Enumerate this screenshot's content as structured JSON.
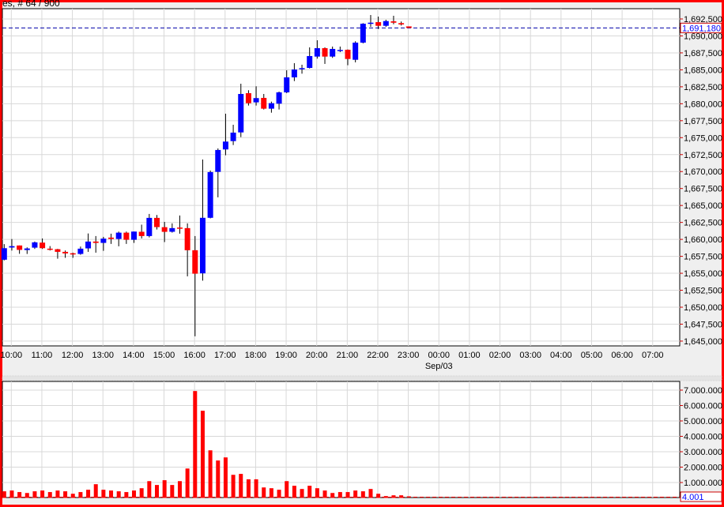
{
  "title": "es, # 64 / 900",
  "colors": {
    "up": "#0000ff",
    "down": "#ff0000",
    "volume": "#ff0000",
    "grid": "#d8d8d8",
    "frame": "#ff0000",
    "last_price_line": "#0000aa"
  },
  "chart_data": [
    {
      "type": "candlestick",
      "times": [
        "09:45",
        "10:00",
        "10:15",
        "10:30",
        "10:45",
        "11:00",
        "11:15",
        "11:30",
        "11:45",
        "12:00",
        "12:15",
        "12:30",
        "12:45",
        "13:00",
        "13:15",
        "13:30",
        "13:45",
        "14:00",
        "14:15",
        "14:30",
        "14:45",
        "15:00",
        "15:15",
        "15:30",
        "15:45",
        "16:00",
        "16:15",
        "16:30",
        "16:45",
        "17:00",
        "17:15",
        "17:30",
        "17:45",
        "18:00",
        "18:15",
        "18:30",
        "18:45",
        "19:00",
        "19:15",
        "19:30",
        "19:45",
        "20:00",
        "20:15",
        "20:30",
        "20:45",
        "21:00",
        "21:15",
        "21:30",
        "21:45",
        "22:00",
        "22:15",
        "22:30",
        "22:45",
        "23:00"
      ],
      "ohlc": [
        [
          1657000,
          1659300,
          1656900,
          1658700
        ],
        [
          1658800,
          1660050,
          1658350,
          1659000
        ],
        [
          1659100,
          1659100,
          1657870,
          1658450
        ],
        [
          1658430,
          1658820,
          1657850,
          1658660
        ],
        [
          1658780,
          1659680,
          1658590,
          1659560
        ],
        [
          1659520,
          1660140,
          1658590,
          1658700
        ],
        [
          1658630,
          1659010,
          1658360,
          1658600
        ],
        [
          1658550,
          1658600,
          1657150,
          1658160
        ],
        [
          1658160,
          1658360,
          1657280,
          1657930
        ],
        [
          1657950,
          1658040,
          1657280,
          1657930
        ],
        [
          1657850,
          1658940,
          1657730,
          1658630
        ],
        [
          1658670,
          1660870,
          1658160,
          1659680
        ],
        [
          1659680,
          1660490,
          1658040,
          1659480
        ],
        [
          1659480,
          1660370,
          1658310,
          1660110
        ],
        [
          1660260,
          1660840,
          1659330,
          1660060
        ],
        [
          1660060,
          1661150,
          1658980,
          1660990
        ],
        [
          1660990,
          1661150,
          1659330,
          1659940
        ],
        [
          1659940,
          1661150,
          1659480,
          1661150
        ],
        [
          1661120,
          1662170,
          1660140,
          1660490
        ],
        [
          1660490,
          1663750,
          1660290,
          1663170
        ],
        [
          1663170,
          1663600,
          1661460,
          1661810
        ],
        [
          1661800,
          1662580,
          1659600,
          1661110
        ],
        [
          1661120,
          1662360,
          1661000,
          1661660
        ],
        [
          1661740,
          1663520,
          1660840,
          1661620
        ],
        [
          1661660,
          1662360,
          1654550,
          1658400
        ],
        [
          1658400,
          1660490,
          1645710,
          1654940
        ],
        [
          1654990,
          1671780,
          1653910,
          1663180
        ],
        [
          1663180,
          1670150,
          1663100,
          1669920
        ],
        [
          1669950,
          1673410,
          1666200,
          1673180
        ],
        [
          1673260,
          1678530,
          1672400,
          1674420
        ],
        [
          1674490,
          1676900,
          1673910,
          1675740
        ],
        [
          1675770,
          1682950,
          1675080,
          1681440
        ],
        [
          1681560,
          1681990,
          1679730,
          1680080
        ],
        [
          1680200,
          1682570,
          1679730,
          1680830
        ],
        [
          1680860,
          1681440,
          1679150,
          1679270
        ],
        [
          1679270,
          1680310,
          1678680,
          1680080
        ],
        [
          1680010,
          1681790,
          1679150,
          1681680
        ],
        [
          1681680,
          1684930,
          1681560,
          1683890
        ],
        [
          1683890,
          1685980,
          1683340,
          1685050
        ],
        [
          1685150,
          1685750,
          1684430,
          1685250
        ],
        [
          1685280,
          1688310,
          1685200,
          1687030
        ],
        [
          1686950,
          1689360,
          1686650,
          1688190
        ],
        [
          1688190,
          1688310,
          1685870,
          1686950
        ],
        [
          1686950,
          1688430,
          1686760,
          1688080
        ],
        [
          1687920,
          1688430,
          1687610,
          1687930
        ],
        [
          1687960,
          1688000,
          1685670,
          1686600
        ],
        [
          1686480,
          1689210,
          1686100,
          1689010
        ],
        [
          1689010,
          1691880,
          1688900,
          1691800
        ],
        [
          1691800,
          1693080,
          1691340,
          1691950
        ],
        [
          1692030,
          1692850,
          1691020,
          1691490
        ],
        [
          1691490,
          1692380,
          1691340,
          1692190
        ],
        [
          1692150,
          1692970,
          1691720,
          1691950
        ],
        [
          1691880,
          1692120,
          1691530,
          1691690
        ],
        [
          1691400,
          1691400,
          1691180,
          1691180
        ]
      ],
      "ylim": [
        1645000,
        1693500
      ],
      "y_ticks": [
        "1,692,500",
        "1,690,000",
        "1,687,500",
        "1,685,000",
        "1,682,500",
        "1,680,000",
        "1,677,500",
        "1,675,000",
        "1,672,500",
        "1,670,000",
        "1,667,500",
        "1,665,000",
        "1,662,500",
        "1,660,000",
        "1,657,500",
        "1,655,000",
        "1,652,500",
        "1,650,000",
        "1,647,500",
        "1,645,000"
      ],
      "last_price": 1691180,
      "last_price_label": "1,691,180",
      "x_ticks": [
        "10:00",
        "11:00",
        "12:00",
        "13:00",
        "14:00",
        "15:00",
        "16:00",
        "17:00",
        "18:00",
        "19:00",
        "20:00",
        "21:00",
        "22:00",
        "23:00",
        "00:00",
        "01:00",
        "02:00",
        "03:00",
        "04:00",
        "05:00",
        "06:00",
        "07:00"
      ],
      "date_label": "Sep/03",
      "grid": true
    },
    {
      "type": "bar",
      "name": "volume",
      "values": [
        430000,
        480000,
        380000,
        320000,
        430000,
        480000,
        380000,
        480000,
        430000,
        270000,
        380000,
        530000,
        890000,
        530000,
        480000,
        430000,
        380000,
        480000,
        630000,
        1090000,
        840000,
        1150000,
        840000,
        1090000,
        1910000,
        6940000,
        5660000,
        3090000,
        2430000,
        2630000,
        1500000,
        1560000,
        1210000,
        1210000,
        680000,
        630000,
        530000,
        1090000,
        790000,
        580000,
        790000,
        630000,
        480000,
        320000,
        380000,
        380000,
        480000,
        430000,
        580000,
        270000,
        120000,
        170000,
        170000,
        4001
      ],
      "ylim": [
        0,
        7500000
      ],
      "y_ticks": [
        "7.000.000",
        "6.000.000",
        "5.000.000",
        "4.000.000",
        "3.000.000",
        "2.000.000",
        "1.000.000"
      ],
      "last_value_label": "4.001",
      "grid": true
    }
  ]
}
